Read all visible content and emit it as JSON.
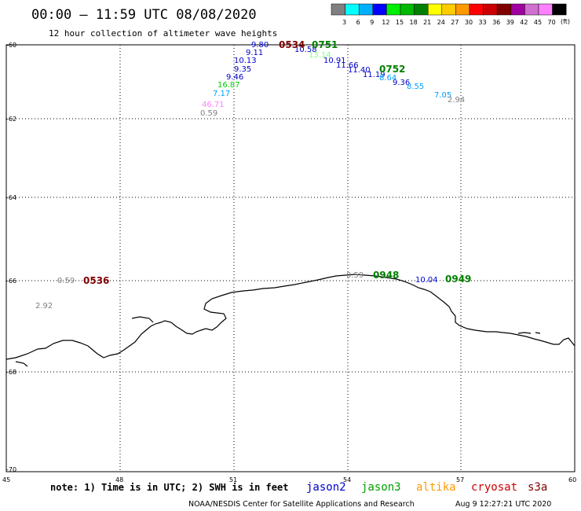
{
  "header": {
    "title": "00:00 – 11:59 UTC 08/08/2020",
    "subtitle": "12 hour collection of altimeter wave heights"
  },
  "legend": {
    "unit": "(ft)",
    "bins": [
      {
        "label": "3",
        "color": "#808080"
      },
      {
        "label": "6",
        "color": "#00ffff"
      },
      {
        "label": "9",
        "color": "#00b0ff"
      },
      {
        "label": "12",
        "color": "#0000ff"
      },
      {
        "label": "15",
        "color": "#00ee00"
      },
      {
        "label": "18",
        "color": "#00b800"
      },
      {
        "label": "21",
        "color": "#008000"
      },
      {
        "label": "24",
        "color": "#ffff00"
      },
      {
        "label": "27",
        "color": "#ffcc00"
      },
      {
        "label": "30",
        "color": "#ff9900"
      },
      {
        "label": "33",
        "color": "#ff0000"
      },
      {
        "label": "36",
        "color": "#cc0000"
      },
      {
        "label": "39",
        "color": "#800000"
      },
      {
        "label": "42",
        "color": "#a000a0"
      },
      {
        "label": "45",
        "color": "#d070d0"
      },
      {
        "label": "70",
        "color": "#ff80ff"
      },
      {
        "label": "",
        "color": "#000000"
      }
    ]
  },
  "axes": {
    "lon_ticks": [
      "45",
      "48",
      "51",
      "54",
      "57",
      "60"
    ],
    "lat_ticks": [
      "-60",
      "-62",
      "-64",
      "-66",
      "-68",
      "-70"
    ]
  },
  "observations": [
    {
      "text": "9.80",
      "color": "#0000cc"
    },
    {
      "text": "9.11",
      "color": "#0000cc"
    },
    {
      "text": "10.13",
      "color": "#0000cc"
    },
    {
      "text": "9.35",
      "color": "#0000cc"
    },
    {
      "text": "9.46",
      "color": "#0000cc"
    },
    {
      "text": "16.87",
      "color": "#00cc00"
    },
    {
      "text": "7.17",
      "color": "#00a0ff"
    },
    {
      "text": "46.71",
      "color": "#ff80ff"
    },
    {
      "text": "0.59",
      "color": "#808080"
    },
    {
      "text": "10.58",
      "color": "#0000cc"
    },
    {
      "text": "13.14",
      "color": "#80ff80"
    },
    {
      "text": "10.91",
      "color": "#0000cc"
    },
    {
      "text": "11.66",
      "color": "#0000cc"
    },
    {
      "text": "11.40",
      "color": "#0000cc"
    },
    {
      "text": "11.19",
      "color": "#0000cc"
    },
    {
      "text": "8.64",
      "color": "#00a0ff"
    },
    {
      "text": "9.36",
      "color": "#0000cc"
    },
    {
      "text": "8.55",
      "color": "#00a0ff"
    },
    {
      "text": "7.05",
      "color": "#00a0ff"
    },
    {
      "text": "2.94",
      "color": "#808080"
    },
    {
      "text": "0.59",
      "color": "#808080"
    },
    {
      "text": "2.92",
      "color": "#808080"
    },
    {
      "text": "0.59",
      "color": "#808080"
    },
    {
      "text": "10.04",
      "color": "#0000cc"
    }
  ],
  "pass_times": [
    {
      "text": "0534",
      "color": "#800000"
    },
    {
      "text": "0751",
      "color": "#008000"
    },
    {
      "text": "0752",
      "color": "#008000"
    },
    {
      "text": "0536",
      "color": "#800000"
    },
    {
      "text": "0948",
      "color": "#008000"
    },
    {
      "text": "0949",
      "color": "#008000"
    }
  ],
  "footer": {
    "note": "note: 1) Time is in UTC; 2) SWH is in feet",
    "satellites": [
      {
        "name": "jason2",
        "color": "#0000cc"
      },
      {
        "name": "jason3",
        "color": "#00a000"
      },
      {
        "name": "altika",
        "color": "#ff9900"
      },
      {
        "name": "cryosat",
        "color": "#cc0000"
      },
      {
        "name": "s3a",
        "color": "#800000"
      }
    ],
    "credit": "NOAA/NESDIS Center for Satellite Applications and Research",
    "timestamp": "Aug  9 12:27:21 UTC 2020"
  }
}
